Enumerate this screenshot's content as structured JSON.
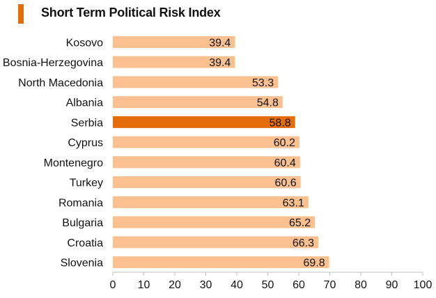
{
  "colors": {
    "accent": "#E46C0A",
    "bar": "#FAC090",
    "highlight_bar": "#E46C0A",
    "axis": "#BFBFBF"
  },
  "chart_data": {
    "type": "bar",
    "orientation": "horizontal",
    "title": "Short Term Political Risk Index",
    "categories": [
      "Kosovo",
      "Bosnia-Herzegovina",
      "North Macedonia",
      "Albania",
      "Serbia",
      "Cyprus",
      "Montenegro",
      "Turkey",
      "Romania",
      "Bulgaria",
      "Croatia",
      "Slovenia"
    ],
    "values": [
      39.4,
      39.4,
      53.3,
      54.8,
      58.8,
      60.2,
      60.4,
      60.6,
      63.1,
      65.2,
      66.3,
      69.8
    ],
    "value_labels": [
      "39.4",
      "39.4",
      "53.3",
      "54.8",
      "58.8",
      "60.2",
      "60.4",
      "60.6",
      "63.1",
      "65.2",
      "66.3",
      "69.8"
    ],
    "highlight": "Serbia",
    "xlim": [
      0,
      100
    ],
    "xticks": [
      0,
      10,
      20,
      30,
      40,
      50,
      60,
      70,
      80,
      90,
      100
    ],
    "xlabel": "",
    "ylabel": "",
    "grid": false,
    "legend": "none"
  }
}
